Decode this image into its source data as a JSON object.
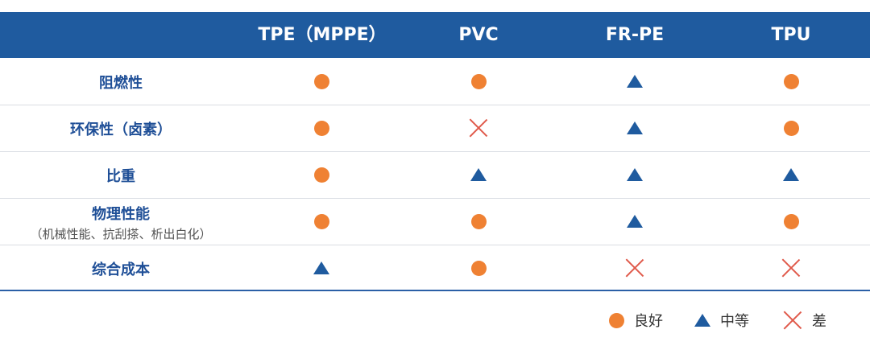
{
  "header": {
    "columns": [
      "TPE（MPPE）",
      "PVC",
      "FR-PE",
      "TPU"
    ]
  },
  "rows": [
    {
      "label": "阻燃性",
      "sub": "",
      "values": [
        "good",
        "good",
        "medium",
        "good"
      ]
    },
    {
      "label": "环保性（卤素）",
      "sub": "",
      "values": [
        "good",
        "poor",
        "medium",
        "good"
      ]
    },
    {
      "label": "比重",
      "sub": "",
      "values": [
        "good",
        "medium",
        "medium",
        "medium"
      ]
    },
    {
      "label": "物理性能",
      "sub": "（机械性能、抗刮搽、析出白化）",
      "values": [
        "good",
        "good",
        "medium",
        "good"
      ]
    },
    {
      "label": "综合成本",
      "sub": "",
      "values": [
        "medium",
        "good",
        "poor",
        "poor"
      ]
    }
  ],
  "legend": [
    {
      "symbol": "good",
      "label": "良好"
    },
    {
      "symbol": "medium",
      "label": "中等"
    },
    {
      "symbol": "poor",
      "label": "差"
    }
  ],
  "colors": {
    "header_bg": "#1f5b9f",
    "good": "#ef8133",
    "medium": "#1f5b9f",
    "poor": "#e05a4b"
  }
}
